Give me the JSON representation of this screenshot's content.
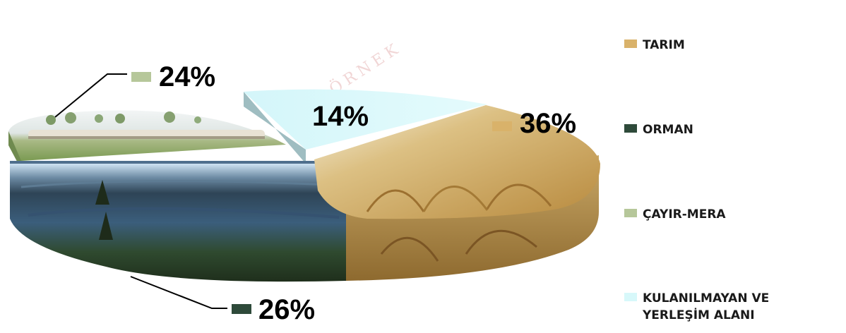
{
  "watermark": "ÖRNEK",
  "chart_data": {
    "type": "pie",
    "title": "",
    "categories": [
      "TARIM",
      "ORMAN",
      "ÇAYIR-MERA",
      "KULANILMAYAN VE YERLEŞİM ALANI"
    ],
    "values": [
      36,
      26,
      24,
      14
    ],
    "value_labels": [
      "36%",
      "26%",
      "24%",
      "14%"
    ],
    "style": "3d-exploded",
    "legend_position": "right",
    "colors": [
      "#d9b26a",
      "#2e4a3a",
      "#b6c79a",
      "#d7f8fa"
    ]
  }
}
